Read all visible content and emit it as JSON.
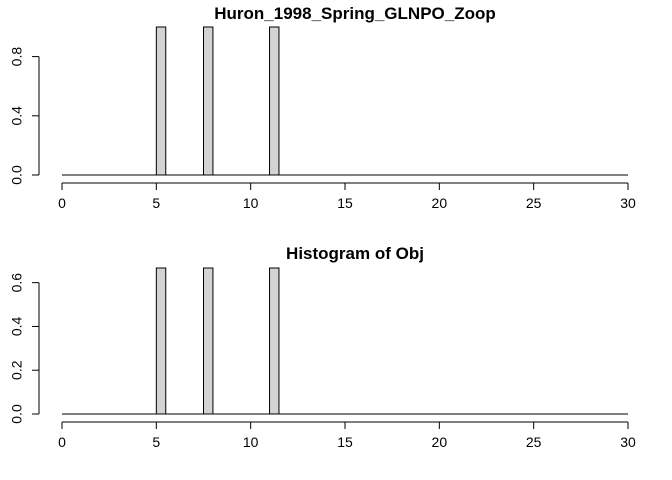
{
  "chart_data": [
    {
      "type": "bar",
      "title": "Huron_1998_Spring_GLNPO_Zoop",
      "xlabel": "",
      "ylabel": "",
      "xlim": [
        0,
        30
      ],
      "ylim": [
        0,
        1.0
      ],
      "x_ticks": [
        0,
        5,
        10,
        15,
        20,
        25,
        30
      ],
      "y_ticks": [
        0.0,
        0.4,
        0.8
      ],
      "x_tick_labels": [
        "0",
        "5",
        "10",
        "15",
        "20",
        "25",
        "30"
      ],
      "y_tick_labels": [
        "0.0",
        "0.4",
        "0.8"
      ],
      "bars": [
        {
          "x_start": 5.0,
          "x_end": 5.5,
          "value": 1.0
        },
        {
          "x_start": 7.5,
          "x_end": 8.0,
          "value": 1.0
        },
        {
          "x_start": 11.0,
          "x_end": 11.5,
          "value": 1.0
        }
      ],
      "bar_fill": "#d3d3d3"
    },
    {
      "type": "bar",
      "title": "Histogram of Obj",
      "xlabel": "",
      "ylabel": "",
      "xlim": [
        0,
        30
      ],
      "ylim": [
        0,
        0.667
      ],
      "x_ticks": [
        0,
        5,
        10,
        15,
        20,
        25,
        30
      ],
      "y_ticks": [
        0.0,
        0.2,
        0.4,
        0.6
      ],
      "x_tick_labels": [
        "0",
        "5",
        "10",
        "15",
        "20",
        "25",
        "30"
      ],
      "y_tick_labels": [
        "0.0",
        "0.2",
        "0.4",
        "0.6"
      ],
      "bars": [
        {
          "x_start": 5.0,
          "x_end": 5.5,
          "value": 0.667
        },
        {
          "x_start": 7.5,
          "x_end": 8.0,
          "value": 0.667
        },
        {
          "x_start": 11.0,
          "x_end": 11.5,
          "value": 0.667
        }
      ],
      "bar_fill": "#d3d3d3"
    }
  ]
}
